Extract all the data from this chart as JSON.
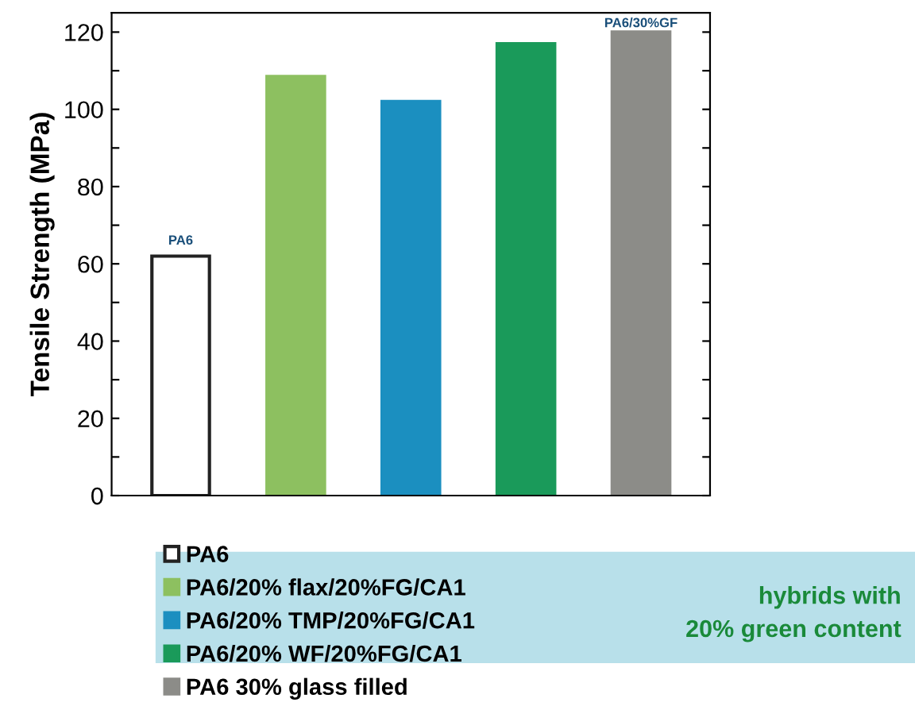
{
  "chart_data": {
    "type": "bar",
    "ylabel": "Tensile Strength (MPa)",
    "categories": [
      null,
      null,
      null,
      null,
      null
    ],
    "series": [
      {
        "name": "PA6",
        "color": "#ffffff",
        "values": [
          62,
          null,
          null,
          null,
          null
        ]
      },
      {
        "name": "PA6/20% flax/20%FG/CA1",
        "color": "#8dc060",
        "values": [
          null,
          108.5,
          null,
          null,
          null
        ]
      },
      {
        "name": "PA6/20% TMP/20%FG/CA1",
        "color": "#1b8fc0",
        "values": [
          null,
          null,
          102,
          null,
          null
        ]
      },
      {
        "name": "PA6/20% WF/20%FG/CA1",
        "color": "#1a9a5a",
        "values": [
          null,
          null,
          null,
          117,
          null
        ]
      },
      {
        "name": "PA6 30% glass filled",
        "color": "#8c8c88",
        "values": [
          null,
          null,
          null,
          null,
          120
        ]
      }
    ],
    "ylim": [
      0,
      125
    ],
    "yticks": [
      0,
      {
        "value": 10,
        "label": null
      },
      20,
      {
        "value": 30,
        "label": null
      },
      40,
      {
        "value": 50,
        "label": null
      },
      60,
      {
        "value": 70,
        "label": null
      },
      80,
      {
        "value": 90,
        "label": null
      },
      100,
      {
        "value": 110,
        "label": null
      },
      120
    ],
    "annotations": [
      {
        "text": "PA6",
        "y": 62
      },
      {
        "text": "PA6/30%GF",
        "y": 120
      },
      "hybrids with\n20% green content"
    ],
    "legend": "bottom",
    "grid": false
  }
}
